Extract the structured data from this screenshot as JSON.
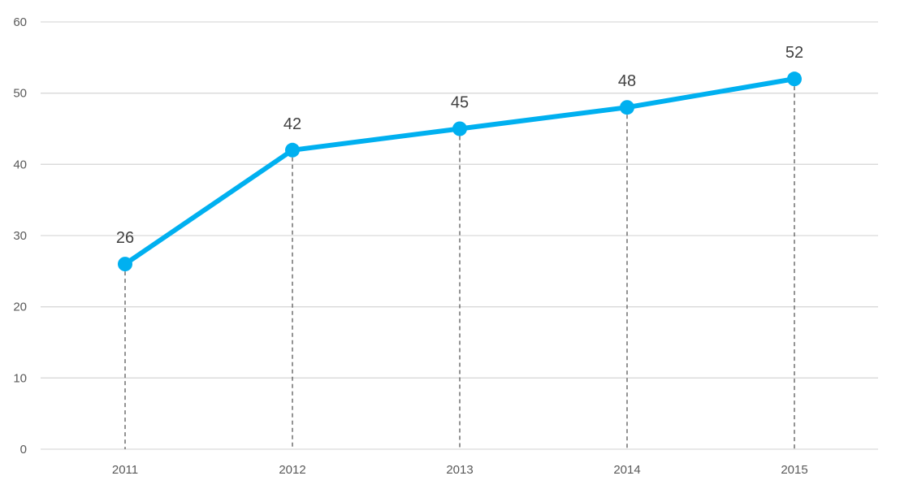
{
  "chart_data": {
    "type": "line",
    "title": "",
    "xlabel": "",
    "ylabel": "",
    "categories": [
      "2011",
      "2012",
      "2013",
      "2014",
      "2015"
    ],
    "series": [
      {
        "values": [
          26,
          42,
          45,
          48,
          52
        ]
      }
    ],
    "data_labels": [
      "26",
      "42",
      "45",
      "48",
      "52"
    ],
    "y_ticks": [
      "0",
      "10",
      "20",
      "30",
      "40",
      "50",
      "60"
    ],
    "ylim": [
      0,
      60
    ],
    "grid": "horizontal",
    "drop_lines": true,
    "legend": "none",
    "colors": {
      "line": "#00B0F0",
      "grid": "#D9D9D9",
      "drop_line": "#595959",
      "tick_text": "#595959",
      "label_text": "#404040"
    }
  }
}
